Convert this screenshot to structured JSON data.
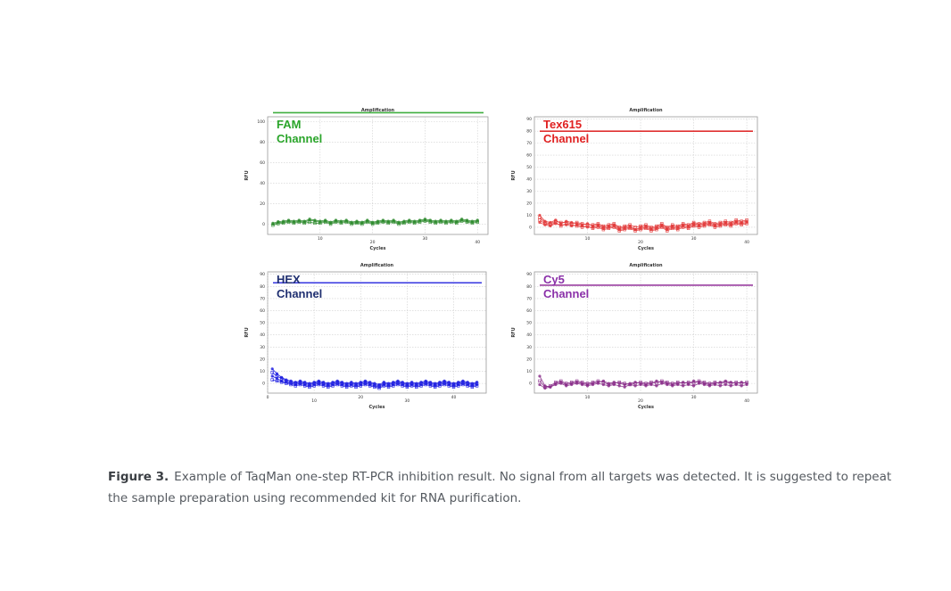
{
  "chart_data": [
    {
      "type": "scatter",
      "title": "Amplification",
      "xlabel": "Cycles",
      "ylabel": "RFU",
      "xlim": [
        0,
        42
      ],
      "ylim": [
        -10,
        105
      ],
      "xticks": [
        10,
        20,
        30,
        40
      ],
      "yticks": [
        0,
        20,
        40,
        60,
        80,
        100
      ],
      "grid": true,
      "channel_label": [
        "FAM",
        "Channel"
      ],
      "threshold": 109,
      "colors": {
        "series": "#2e8b2e",
        "threshold": "#3fae3f",
        "label": "#2aa52a"
      },
      "series": [
        {
          "values": [
            0,
            1.5,
            2,
            3,
            2,
            3,
            2,
            4,
            3,
            2,
            3,
            1,
            3,
            2,
            3,
            1,
            2,
            1,
            3,
            1,
            2,
            3,
            2,
            3,
            1,
            2,
            3,
            2,
            3,
            4,
            3,
            2,
            3,
            2,
            3,
            2,
            4,
            3,
            2,
            3
          ]
        },
        {
          "values": [
            -1,
            0.5,
            1,
            2,
            1,
            2,
            1,
            2,
            1,
            1,
            2,
            0,
            2,
            1,
            2,
            0,
            1,
            0,
            2,
            0,
            1,
            2,
            1,
            2,
            0,
            1,
            2,
            1,
            2,
            3,
            2,
            1,
            2,
            1,
            2,
            1,
            3,
            2,
            1,
            2
          ]
        },
        {
          "values": [
            1,
            2.5,
            3,
            4,
            3,
            4,
            3,
            5,
            4,
            3,
            4,
            2,
            4,
            3,
            4,
            2,
            3,
            2,
            4,
            2,
            3,
            4,
            3,
            4,
            2,
            3,
            4,
            3,
            4,
            5,
            4,
            3,
            4,
            3,
            4,
            3,
            5,
            4,
            3,
            4
          ]
        }
      ]
    },
    {
      "type": "scatter",
      "title": "Amplification",
      "xlabel": "Cycles",
      "ylabel": "RFU",
      "xlim": [
        0,
        42
      ],
      "ylim": [
        -6,
        92
      ],
      "xticks": [
        10,
        20,
        30,
        40
      ],
      "yticks": [
        0,
        10,
        20,
        30,
        40,
        50,
        60,
        70,
        80,
        90
      ],
      "grid": true,
      "channel_label": [
        "Tex615",
        "Channel"
      ],
      "threshold": 80,
      "colors": {
        "series": "#e23a3a",
        "threshold": "#e03030",
        "label": "#e02020"
      },
      "series": [
        {
          "values": [
            10,
            5,
            4,
            6,
            3,
            5,
            4,
            3,
            2,
            3,
            1,
            2,
            0,
            1,
            2,
            -1,
            0,
            1,
            -2,
            0,
            1,
            -1,
            0,
            2,
            -1,
            1,
            0,
            2,
            1,
            3,
            2,
            3,
            4,
            2,
            3,
            4,
            3,
            5,
            4,
            5
          ]
        },
        {
          "values": [
            6,
            3,
            2,
            4,
            1,
            3,
            2,
            1,
            0,
            1,
            -1,
            0,
            -2,
            -1,
            0,
            -3,
            -2,
            -1,
            -3,
            -2,
            -1,
            -3,
            -2,
            0,
            -3,
            -1,
            -2,
            0,
            -1,
            1,
            0,
            1,
            2,
            0,
            1,
            2,
            1,
            3,
            2,
            3
          ]
        },
        {
          "values": [
            4,
            2,
            1,
            3,
            2,
            2,
            1,
            2,
            1,
            0,
            0,
            1,
            -1,
            0,
            1,
            -2,
            -1,
            0,
            -2,
            -1,
            0,
            -2,
            -1,
            1,
            -2,
            0,
            -1,
            1,
            0,
            2,
            1,
            2,
            3,
            1,
            2,
            3,
            2,
            4,
            3,
            4
          ]
        },
        {
          "values": [
            8,
            4,
            3,
            5,
            4,
            4,
            3,
            4,
            3,
            2,
            2,
            3,
            1,
            2,
            3,
            0,
            1,
            2,
            0,
            1,
            2,
            0,
            1,
            3,
            0,
            2,
            1,
            3,
            2,
            4,
            3,
            4,
            5,
            3,
            4,
            5,
            4,
            6,
            5,
            6
          ]
        }
      ]
    },
    {
      "type": "scatter",
      "title": "Amplification",
      "xlabel": "Cycles",
      "ylabel": "RFU",
      "xlim": [
        0,
        47
      ],
      "ylim": [
        -8,
        92
      ],
      "xticks": [
        0,
        10,
        20,
        30,
        40
      ],
      "yticks": [
        0,
        10,
        20,
        30,
        40,
        50,
        60,
        70,
        80,
        90
      ],
      "grid": true,
      "channel_label": [
        "HEX",
        "Channel"
      ],
      "threshold": 83,
      "colors": {
        "series": "#1a1ae0",
        "threshold": "#3535e0",
        "label": "#1f2f70"
      },
      "series": [
        {
          "values": [
            12,
            8,
            5,
            3,
            2,
            1,
            2,
            1,
            0,
            1,
            2,
            1,
            0,
            1,
            2,
            1,
            0,
            1,
            0,
            1,
            2,
            1,
            0,
            -1,
            1,
            0,
            1,
            2,
            1,
            0,
            1,
            0,
            1,
            2,
            1,
            0,
            1,
            2,
            1,
            0,
            1,
            2,
            1,
            0,
            1
          ]
        },
        {
          "values": [
            9,
            6,
            4,
            2,
            1,
            0,
            1,
            0,
            -1,
            0,
            1,
            0,
            -1,
            0,
            1,
            0,
            -1,
            0,
            -1,
            0,
            1,
            0,
            -1,
            -2,
            0,
            -1,
            0,
            1,
            0,
            -1,
            0,
            -1,
            0,
            1,
            0,
            -1,
            0,
            1,
            0,
            -1,
            0,
            1,
            0,
            -1,
            0
          ]
        },
        {
          "values": [
            6,
            4,
            2,
            1,
            0,
            -1,
            0,
            -1,
            -2,
            -1,
            0,
            -1,
            -2,
            -1,
            0,
            -1,
            -2,
            -1,
            -2,
            -1,
            0,
            -1,
            -2,
            -3,
            -1,
            -2,
            -1,
            0,
            -1,
            -2,
            -1,
            -2,
            -1,
            0,
            -1,
            -2,
            -1,
            0,
            -1,
            -2,
            -1,
            0,
            -1,
            -2,
            -1
          ]
        },
        {
          "values": [
            3,
            2,
            1,
            0,
            -1,
            -2,
            -1,
            -2,
            -3,
            -2,
            -1,
            -2,
            -3,
            -2,
            -1,
            -2,
            -3,
            -2,
            -3,
            -2,
            -1,
            -2,
            -3,
            -4,
            -2,
            -3,
            -2,
            -1,
            -2,
            -3,
            -2,
            -3,
            -2,
            -1,
            -2,
            -3,
            -2,
            -1,
            -2,
            -3,
            -2,
            -1,
            -2,
            -3,
            -2
          ]
        }
      ]
    },
    {
      "type": "scatter",
      "title": "Amplification",
      "xlabel": "Cycles",
      "ylabel": "RFU",
      "xlim": [
        0,
        42
      ],
      "ylim": [
        -8,
        92
      ],
      "xticks": [
        10,
        20,
        30,
        40
      ],
      "yticks": [
        0,
        10,
        20,
        30,
        40,
        50,
        60,
        70,
        80,
        90
      ],
      "grid": true,
      "channel_label": [
        "Cy5",
        "Channel"
      ],
      "threshold": 81,
      "colors": {
        "series": "#8a2e8a",
        "threshold": "#9a3fa0",
        "label": "#8a30a8"
      },
      "series": [
        {
          "values": [
            6,
            -2,
            -3,
            0,
            1,
            -1,
            0,
            1,
            0,
            -1,
            0,
            1,
            2,
            0,
            1,
            0,
            -1,
            0,
            1,
            0,
            -1,
            0,
            2,
            1,
            0,
            -1,
            0,
            1,
            0,
            2,
            1,
            0,
            -1,
            0,
            1,
            2,
            1,
            0,
            1,
            0
          ]
        },
        {
          "values": [
            2,
            -3,
            -2,
            1,
            2,
            0,
            1,
            2,
            1,
            0,
            1,
            2,
            1,
            -1,
            0,
            1,
            0,
            -1,
            0,
            1,
            0,
            1,
            0,
            2,
            1,
            0,
            1,
            0,
            1,
            0,
            2,
            1,
            0,
            1,
            0,
            1,
            0,
            1,
            0,
            1
          ]
        },
        {
          "values": [
            -1,
            -4,
            -3,
            -1,
            0,
            -2,
            -1,
            0,
            -1,
            -2,
            -1,
            0,
            -1,
            -2,
            -1,
            -2,
            -3,
            -1,
            -2,
            -1,
            -2,
            -1,
            -2,
            0,
            -1,
            -2,
            -1,
            -2,
            -1,
            -2,
            0,
            -1,
            -2,
            -1,
            -2,
            -1,
            -2,
            -1,
            -2,
            -1
          ]
        }
      ]
    }
  ],
  "caption": {
    "label": "Figure 3.",
    "text": "Example of TaqMan one-step RT-PCR inhibition result. No signal from all targets was detected. It is suggested to repeat the sample preparation using recommended kit for RNA purification."
  }
}
